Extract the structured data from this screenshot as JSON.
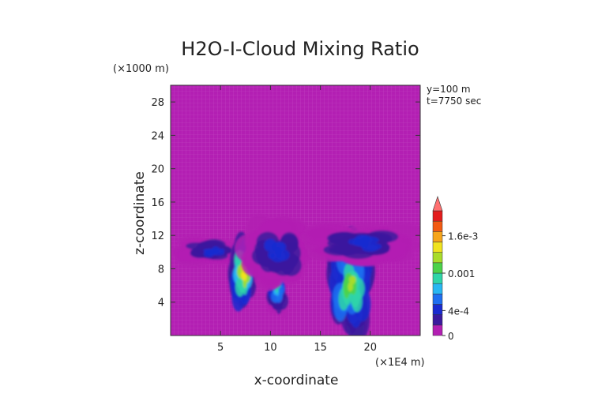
{
  "chart_data": {
    "type": "heatmap",
    "title": "H2O-I-Cloud Mixing Ratio",
    "xlabel": "x-coordinate",
    "ylabel": "z-coordinate",
    "x_unit": "(×1E4 m)",
    "y_unit": "(×1000 m)",
    "annotations": [
      "y=100 m",
      "t=7750 sec"
    ],
    "xlim": [
      0,
      25
    ],
    "ylim": [
      0,
      30
    ],
    "x_ticks": [
      5,
      10,
      15,
      20
    ],
    "y_ticks": [
      4,
      8,
      12,
      16,
      20,
      24,
      28
    ],
    "colorbar": {
      "tick_values": [
        0,
        0.0004,
        0.001,
        0.0016
      ],
      "tick_labels": [
        "0",
        "4e-4",
        "0.001",
        "1.6e-3"
      ],
      "range": [
        0,
        0.002
      ],
      "colors": [
        "#b31fb3",
        "#3b1a9e",
        "#1a2bd0",
        "#1f6ff0",
        "#28b7f2",
        "#2fd5a8",
        "#4cd24a",
        "#a9dc2a",
        "#f0e31f",
        "#f6a51a",
        "#f25a12",
        "#e31c1c"
      ],
      "overflow_color": "#ff7070"
    },
    "background_color": "#b31fb3",
    "cloud_regions": [
      {
        "x": [
          0.8,
          7.5
        ],
        "z": [
          8.8,
          11.5
        ],
        "peak": 0.0004
      },
      {
        "x": [
          6.2,
          8.4
        ],
        "z": [
          3.5,
          11.5
        ],
        "peak": 0.0014
      },
      {
        "x": [
          9.8,
          11.5
        ],
        "z": [
          3.0,
          8.5
        ],
        "peak": 0.0009
      },
      {
        "x": [
          7.5,
          13.5
        ],
        "z": [
          6.5,
          13.5
        ],
        "peak": 0.0004
      },
      {
        "x": [
          16.2,
          19.8
        ],
        "z": [
          1.0,
          11.8
        ],
        "peak": 0.0013
      },
      {
        "x": [
          14.0,
          23.8
        ],
        "z": [
          9.0,
          13.0
        ],
        "peak": 0.0004
      }
    ]
  }
}
